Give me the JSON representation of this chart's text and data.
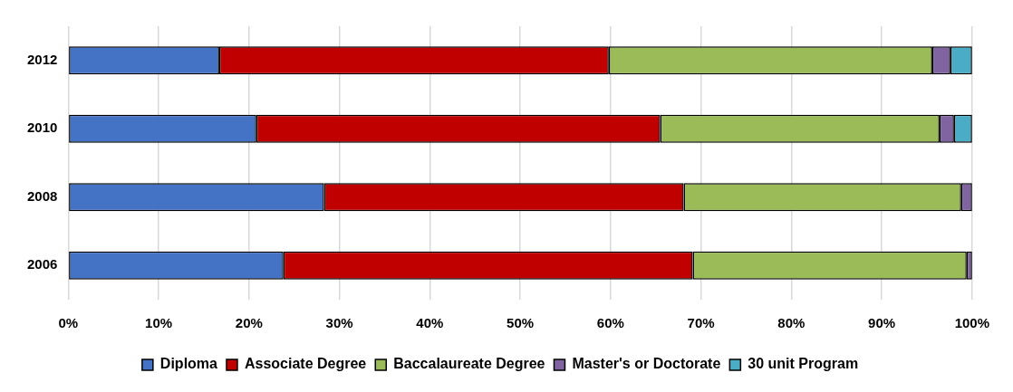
{
  "chart_data": {
    "type": "bar",
    "orientation": "horizontal",
    "stacked": true,
    "categories": [
      "2012",
      "2010",
      "2008",
      "2006"
    ],
    "series": [
      {
        "name": "Diploma",
        "color": "#4472c4",
        "values": [
          16.7,
          20.8,
          28.3,
          23.8
        ]
      },
      {
        "name": "Associate Degree",
        "color": "#c00000",
        "values": [
          43.1,
          44.7,
          39.8,
          45.3
        ]
      },
      {
        "name": "Baccalaureate Degree",
        "color": "#9bbb59",
        "values": [
          35.8,
          30.9,
          30.7,
          30.3
        ]
      },
      {
        "name": "Master's or Doctorate",
        "color": "#8064a2",
        "values": [
          2.0,
          1.6,
          1.2,
          0.6
        ]
      },
      {
        "name": "30 unit Program",
        "color": "#4bacc6",
        "values": [
          2.4,
          2.0,
          null,
          null
        ]
      }
    ],
    "xlim": [
      0,
      100
    ],
    "xticks": [
      {
        "value": 0,
        "label": "0%"
      },
      {
        "value": 10,
        "label": "10%"
      },
      {
        "value": 20,
        "label": "20%"
      },
      {
        "value": 30,
        "label": "30%"
      },
      {
        "value": 40,
        "label": "40%"
      },
      {
        "value": 50,
        "label": "50%"
      },
      {
        "value": 60,
        "label": "60%"
      },
      {
        "value": 70,
        "label": "70%"
      },
      {
        "value": 80,
        "label": "80%"
      },
      {
        "value": 90,
        "label": "90%"
      },
      {
        "value": 100,
        "label": "100%"
      }
    ],
    "grid": "x",
    "legend": "bottom"
  }
}
